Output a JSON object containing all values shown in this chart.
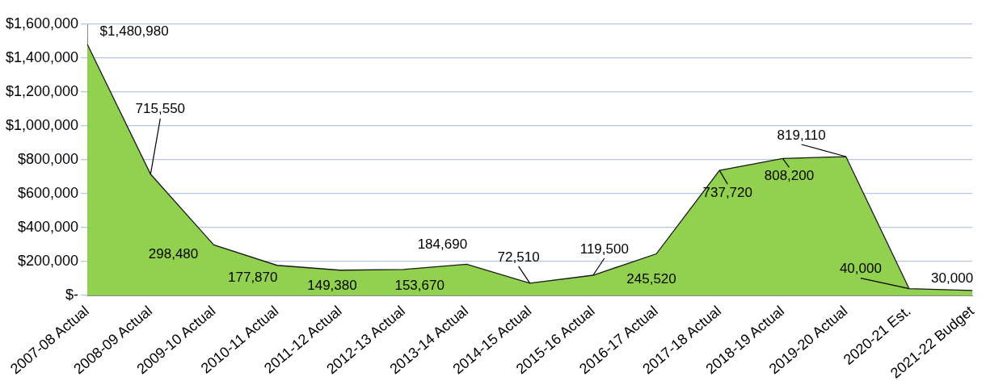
{
  "chart_data": {
    "type": "area",
    "categories": [
      "2007-08 Actual",
      "2008-09 Actual",
      "2009-10 Actual",
      "2010-11 Actual",
      "2011-12 Actual",
      "2012-13 Actual",
      "2013-14 Actual",
      "2014-15 Actual",
      "2015-16 Actual",
      "2016-17 Actual",
      "2017-18 Actual",
      "2018-19 Actual",
      "2019-20 Actual",
      "2020-21 Est.",
      "2021-22 Budget"
    ],
    "series": [
      {
        "color": "#92d050",
        "values": [
          1480980,
          715550,
          298480,
          177870,
          149380,
          153670,
          184690,
          72510,
          119500,
          245520,
          737720,
          808200,
          819110,
          40000,
          30000
        ],
        "value_labels": [
          "$1,480,980",
          "715,550",
          "298,480",
          "177,870",
          "149,380",
          "153,670",
          "184,690",
          "72,510",
          "119,500",
          "245,520",
          "737,720",
          "808,200",
          "819,110",
          "40,000",
          "30,000"
        ]
      }
    ],
    "ylim": [
      0,
      1600000
    ],
    "yticks": [
      {
        "value": 0,
        "label": "$-"
      },
      {
        "value": 200000,
        "label": "$200,000"
      },
      {
        "value": 400000,
        "label": "$400,000"
      },
      {
        "value": 600000,
        "label": "$600,000"
      },
      {
        "value": 800000,
        "label": "$800,000"
      },
      {
        "value": 1000000,
        "label": "$1,000,000"
      },
      {
        "value": 1200000,
        "label": "$1,200,000"
      },
      {
        "value": 1400000,
        "label": "$1,400,000"
      },
      {
        "value": 1600000,
        "label": "$1,600,000"
      }
    ],
    "grid": "y",
    "legend": false
  }
}
